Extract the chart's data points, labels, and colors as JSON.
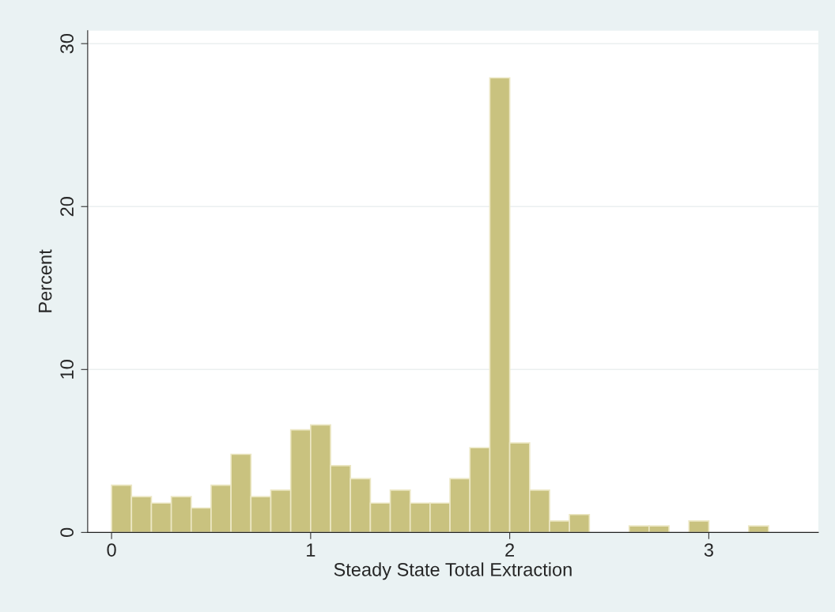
{
  "chart_data": {
    "type": "histogram",
    "xlabel": "Steady State Total Extraction",
    "ylabel": "Percent",
    "bins": [
      0,
      0.1,
      0.2,
      0.3,
      0.4,
      0.5,
      0.6,
      0.7,
      0.8,
      0.9,
      1.0,
      1.1,
      1.2,
      1.3,
      1.4,
      1.5,
      1.6,
      1.7,
      1.8,
      1.9,
      2.0,
      2.1,
      2.2,
      2.3,
      2.4,
      2.5,
      2.6,
      2.7,
      2.8,
      2.9,
      3.0,
      3.1,
      3.2,
      3.3
    ],
    "values": [
      2.9,
      2.2,
      1.8,
      2.2,
      1.5,
      2.9,
      4.8,
      2.2,
      2.6,
      6.3,
      6.6,
      4.1,
      3.3,
      1.8,
      2.6,
      1.8,
      1.8,
      3.3,
      5.2,
      27.9,
      5.5,
      2.6,
      0.7,
      1.1,
      0,
      0,
      0.4,
      0.4,
      0,
      0.7,
      0,
      0,
      0.4
    ],
    "color": "#c9c27f",
    "xlim": [
      -0.12,
      3.55
    ],
    "xticks": [
      0,
      1,
      2,
      3
    ],
    "ylim": [
      0,
      30.8
    ],
    "yticks": [
      0,
      10,
      20,
      30
    ],
    "grid": "y",
    "legend": false
  }
}
